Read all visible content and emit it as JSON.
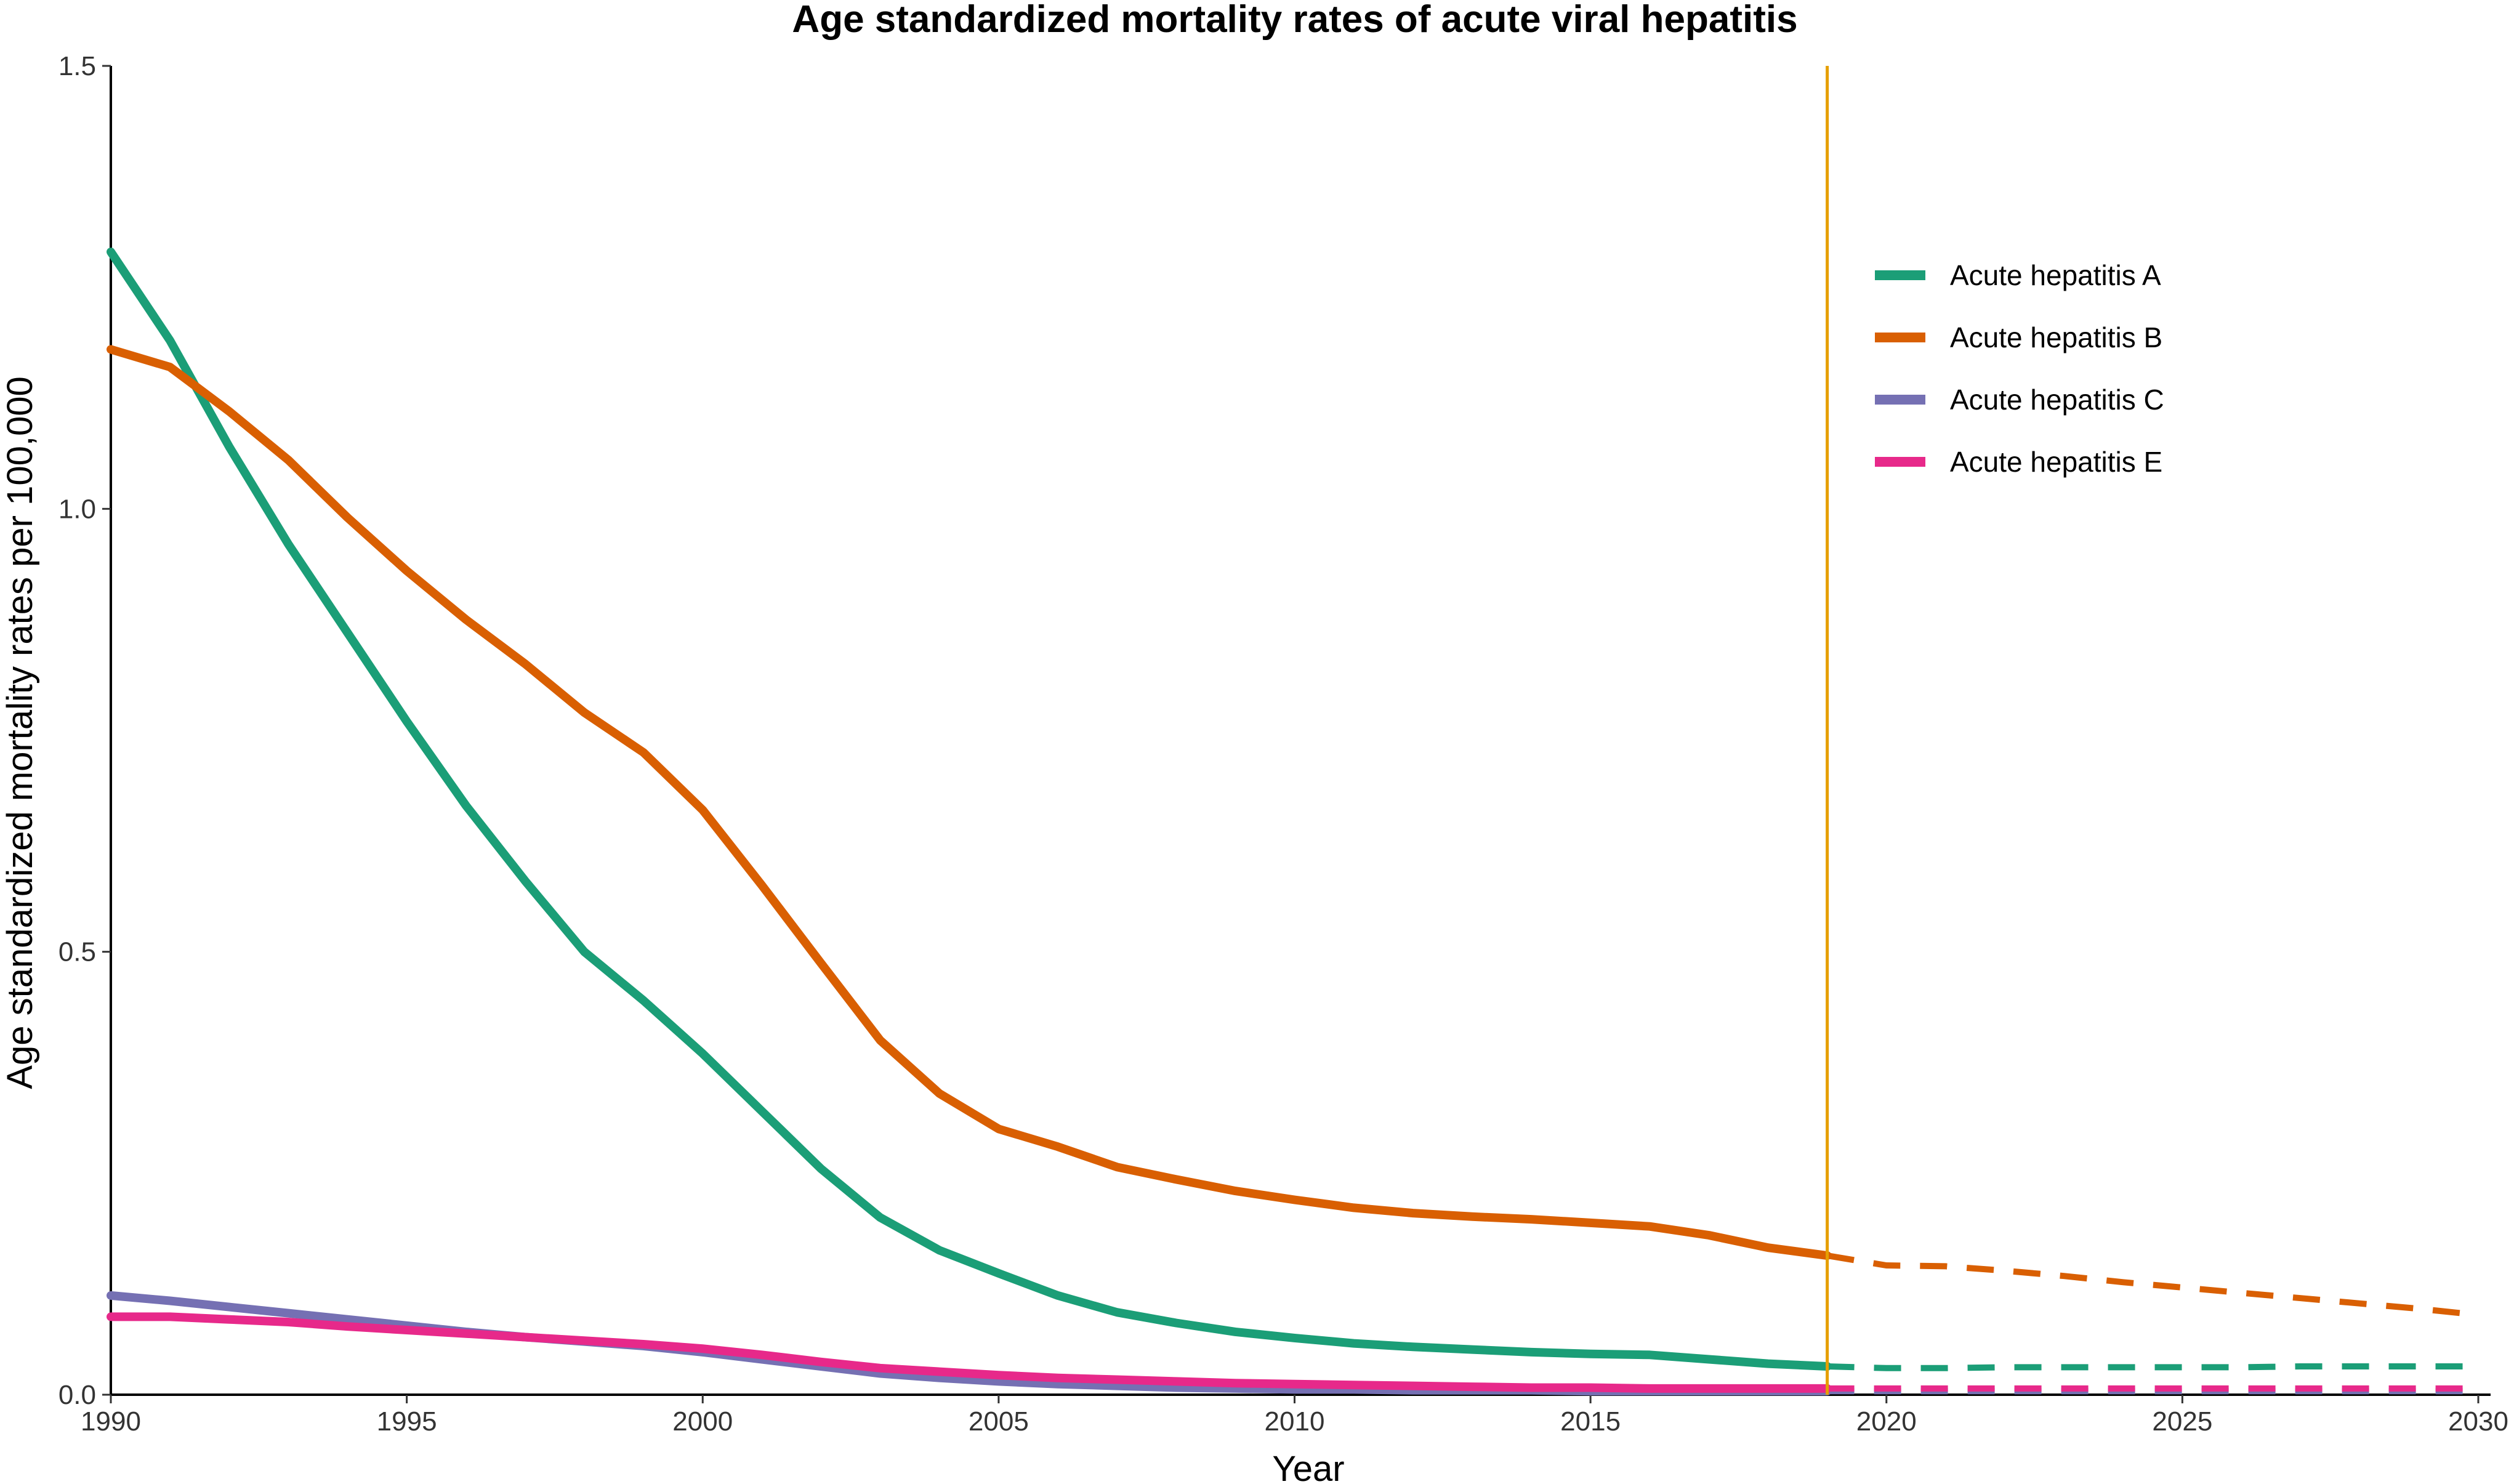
{
  "chart_data": {
    "type": "line",
    "title": "Age standardized mortality rates of acute viral hepatitis",
    "xlabel": "Year",
    "ylabel": "Age standardized mortality rates per 100,000",
    "xlim": [
      1990,
      2030
    ],
    "ylim": [
      0,
      1.5
    ],
    "x_ticks": [
      1990,
      1995,
      2000,
      2005,
      2010,
      2015,
      2020,
      2025,
      2030
    ],
    "y_ticks": [
      0.0,
      0.5,
      1.0,
      1.5
    ],
    "y_tick_labels": [
      "0.0",
      "0.5",
      "1.0",
      "1.5"
    ],
    "grid": false,
    "legend_position": "right",
    "reference_line": {
      "x": 2019,
      "color": "#E69F00"
    },
    "observed_end_year": 2019,
    "series": [
      {
        "name": "Acute hepatitis A",
        "color": "#1B9E77",
        "observed": {
          "x": [
            1990,
            1991,
            1992,
            1993,
            1994,
            1995,
            1996,
            1997,
            1998,
            1999,
            2000,
            2001,
            2002,
            2003,
            2004,
            2005,
            2006,
            2007,
            2008,
            2009,
            2010,
            2011,
            2012,
            2013,
            2014,
            2015,
            2016,
            2017,
            2018,
            2019
          ],
          "y": [
            1.29,
            1.19,
            1.07,
            0.96,
            0.86,
            0.76,
            0.665,
            0.58,
            0.5,
            0.445,
            0.385,
            0.32,
            0.255,
            0.2,
            0.163,
            0.137,
            0.112,
            0.093,
            0.081,
            0.071,
            0.064,
            0.058,
            0.054,
            0.051,
            0.048,
            0.046,
            0.045,
            0.04,
            0.035,
            0.032
          ]
        },
        "forecast": {
          "x": [
            2019,
            2020,
            2021,
            2022,
            2023,
            2024,
            2025,
            2026,
            2027,
            2028,
            2029,
            2030
          ],
          "y": [
            0.032,
            0.03,
            0.03,
            0.031,
            0.031,
            0.031,
            0.031,
            0.031,
            0.032,
            0.032,
            0.032,
            0.032
          ]
        }
      },
      {
        "name": "Acute hepatitis B",
        "color": "#D95F02",
        "observed": {
          "x": [
            1990,
            1991,
            1992,
            1993,
            1994,
            1995,
            1996,
            1997,
            1998,
            1999,
            2000,
            2001,
            2002,
            2003,
            2004,
            2005,
            2006,
            2007,
            2008,
            2009,
            2010,
            2011,
            2012,
            2013,
            2014,
            2015,
            2016,
            2017,
            2018,
            2019
          ],
          "y": [
            1.18,
            1.16,
            1.11,
            1.055,
            0.99,
            0.93,
            0.875,
            0.825,
            0.77,
            0.725,
            0.66,
            0.575,
            0.487,
            0.4,
            0.34,
            0.3,
            0.28,
            0.257,
            0.243,
            0.23,
            0.22,
            0.211,
            0.205,
            0.201,
            0.198,
            0.194,
            0.19,
            0.18,
            0.166,
            0.157
          ]
        },
        "forecast": {
          "x": [
            2019,
            2020,
            2021,
            2022,
            2023,
            2024,
            2025,
            2026,
            2027,
            2028,
            2029,
            2030
          ],
          "y": [
            0.157,
            0.146,
            0.145,
            0.14,
            0.134,
            0.127,
            0.121,
            0.115,
            0.109,
            0.103,
            0.097,
            0.09
          ]
        }
      },
      {
        "name": "Acute hepatitis C",
        "color": "#7570B3",
        "observed": {
          "x": [
            1990,
            1991,
            1992,
            1993,
            1994,
            1995,
            1996,
            1997,
            1998,
            1999,
            2000,
            2001,
            2002,
            2003,
            2004,
            2005,
            2006,
            2007,
            2008,
            2009,
            2010,
            2011,
            2012,
            2013,
            2014,
            2015,
            2016,
            2017,
            2018,
            2019
          ],
          "y": [
            0.112,
            0.106,
            0.099,
            0.092,
            0.085,
            0.078,
            0.071,
            0.065,
            0.06,
            0.055,
            0.048,
            0.04,
            0.032,
            0.024,
            0.019,
            0.015,
            0.012,
            0.01,
            0.008,
            0.007,
            0.006,
            0.006,
            0.005,
            0.005,
            0.005,
            0.004,
            0.004,
            0.004,
            0.004,
            0.004
          ]
        },
        "forecast": {
          "x": [
            2019,
            2020,
            2021,
            2022,
            2023,
            2024,
            2025,
            2026,
            2027,
            2028,
            2029,
            2030
          ],
          "y": [
            0.004,
            0.004,
            0.004,
            0.004,
            0.004,
            0.004,
            0.004,
            0.004,
            0.004,
            0.004,
            0.004,
            0.004
          ]
        }
      },
      {
        "name": "Acute hepatitis E",
        "color": "#E7298A",
        "observed": {
          "x": [
            1990,
            1991,
            1992,
            1993,
            1994,
            1995,
            1996,
            1997,
            1998,
            1999,
            2000,
            2001,
            2002,
            2003,
            2004,
            2005,
            2006,
            2007,
            2008,
            2009,
            2010,
            2011,
            2012,
            2013,
            2014,
            2015,
            2016,
            2017,
            2018,
            2019
          ],
          "y": [
            0.088,
            0.088,
            0.085,
            0.082,
            0.077,
            0.073,
            0.069,
            0.065,
            0.061,
            0.057,
            0.052,
            0.045,
            0.037,
            0.03,
            0.026,
            0.022,
            0.019,
            0.017,
            0.015,
            0.013,
            0.012,
            0.011,
            0.01,
            0.009,
            0.008,
            0.008,
            0.007,
            0.007,
            0.007,
            0.007
          ]
        },
        "forecast": {
          "x": [
            2019,
            2020,
            2021,
            2022,
            2023,
            2024,
            2025,
            2026,
            2027,
            2028,
            2029,
            2030
          ],
          "y": [
            0.007,
            0.007,
            0.007,
            0.007,
            0.007,
            0.007,
            0.007,
            0.007,
            0.007,
            0.007,
            0.007,
            0.007
          ]
        }
      }
    ]
  }
}
